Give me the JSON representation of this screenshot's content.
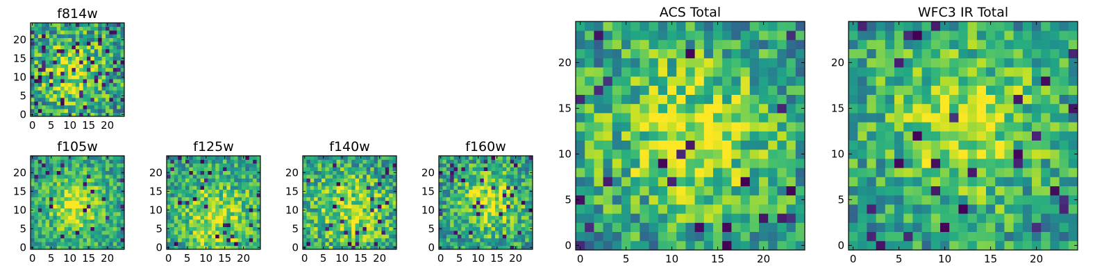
{
  "figure": {
    "background": "#ffffff"
  },
  "chart_data": [
    {
      "id": "f814w",
      "type": "heatmap",
      "title": "f814w",
      "xlabel": "",
      "ylabel": "",
      "grid_size": 25,
      "xlim": [
        -0.5,
        24.5
      ],
      "ylim": [
        -0.5,
        24.5
      ],
      "xticks": [
        0,
        5,
        10,
        15,
        20
      ],
      "yticks": [
        0,
        5,
        10,
        15,
        20
      ],
      "colormap": "viridis",
      "seed": 814,
      "peak": [
        11,
        11
      ],
      "sigma": 6,
      "noise": 0.6,
      "dark_fraction": 0.08
    },
    {
      "id": "f105w",
      "type": "heatmap",
      "title": "f105w",
      "xlabel": "",
      "ylabel": "",
      "grid_size": 25,
      "xlim": [
        -0.5,
        24.5
      ],
      "ylim": [
        -0.5,
        24.5
      ],
      "xticks": [
        0,
        5,
        10,
        15,
        20
      ],
      "yticks": [
        0,
        5,
        10,
        15,
        20
      ],
      "colormap": "viridis",
      "seed": 105,
      "peak": [
        12,
        11
      ],
      "sigma": 6,
      "noise": 0.45,
      "dark_fraction": 0.03
    },
    {
      "id": "f125w",
      "type": "heatmap",
      "title": "f125w",
      "xlabel": "",
      "ylabel": "",
      "grid_size": 25,
      "xlim": [
        -0.5,
        24.5
      ],
      "ylim": [
        -0.5,
        24.5
      ],
      "xticks": [
        0,
        5,
        10,
        15,
        20
      ],
      "yticks": [
        0,
        5,
        10,
        15,
        20
      ],
      "colormap": "viridis",
      "seed": 125,
      "peak": [
        13,
        8
      ],
      "sigma": 7,
      "noise": 0.5,
      "dark_fraction": 0.03
    },
    {
      "id": "f140w",
      "type": "heatmap",
      "title": "f140w",
      "xlabel": "",
      "ylabel": "",
      "grid_size": 25,
      "xlim": [
        -0.5,
        24.5
      ],
      "ylim": [
        -0.5,
        24.5
      ],
      "xticks": [
        0,
        5,
        10,
        15,
        20
      ],
      "yticks": [
        0,
        5,
        10,
        15,
        20
      ],
      "colormap": "viridis",
      "seed": 140,
      "peak": [
        12,
        10
      ],
      "sigma": 7,
      "noise": 0.55,
      "dark_fraction": 0.04
    },
    {
      "id": "f160w",
      "type": "heatmap",
      "title": "f160w",
      "xlabel": "",
      "ylabel": "",
      "grid_size": 25,
      "xlim": [
        -0.5,
        24.5
      ],
      "ylim": [
        -0.5,
        24.5
      ],
      "xticks": [
        0,
        5,
        10,
        15,
        20
      ],
      "yticks": [
        0,
        5,
        10,
        15,
        20
      ],
      "colormap": "viridis",
      "seed": 160,
      "peak": [
        13,
        12
      ],
      "sigma": 6,
      "noise": 0.5,
      "dark_fraction": 0.05
    },
    {
      "id": "acs-total",
      "type": "heatmap",
      "title": "ACS Total",
      "xlabel": "",
      "ylabel": "",
      "grid_size": 25,
      "xlim": [
        -0.5,
        24.5
      ],
      "ylim": [
        -0.5,
        24.5
      ],
      "xticks": [
        0,
        5,
        10,
        15,
        20
      ],
      "yticks": [
        0,
        5,
        10,
        15,
        20
      ],
      "colormap": "viridis",
      "seed": 901,
      "peak": [
        12,
        12
      ],
      "sigma": 6,
      "noise": 0.55,
      "dark_fraction": 0.04
    },
    {
      "id": "wfc3-ir-total",
      "type": "heatmap",
      "title": "WFC3 IR Total",
      "xlabel": "",
      "ylabel": "",
      "grid_size": 25,
      "xlim": [
        -0.5,
        24.5
      ],
      "ylim": [
        -0.5,
        24.5
      ],
      "xticks": [
        0,
        5,
        10,
        15,
        20
      ],
      "yticks": [
        0,
        5,
        10,
        15,
        20
      ],
      "colormap": "viridis",
      "seed": 902,
      "peak": [
        12,
        13
      ],
      "sigma": 6,
      "noise": 0.5,
      "dark_fraction": 0.04
    }
  ]
}
